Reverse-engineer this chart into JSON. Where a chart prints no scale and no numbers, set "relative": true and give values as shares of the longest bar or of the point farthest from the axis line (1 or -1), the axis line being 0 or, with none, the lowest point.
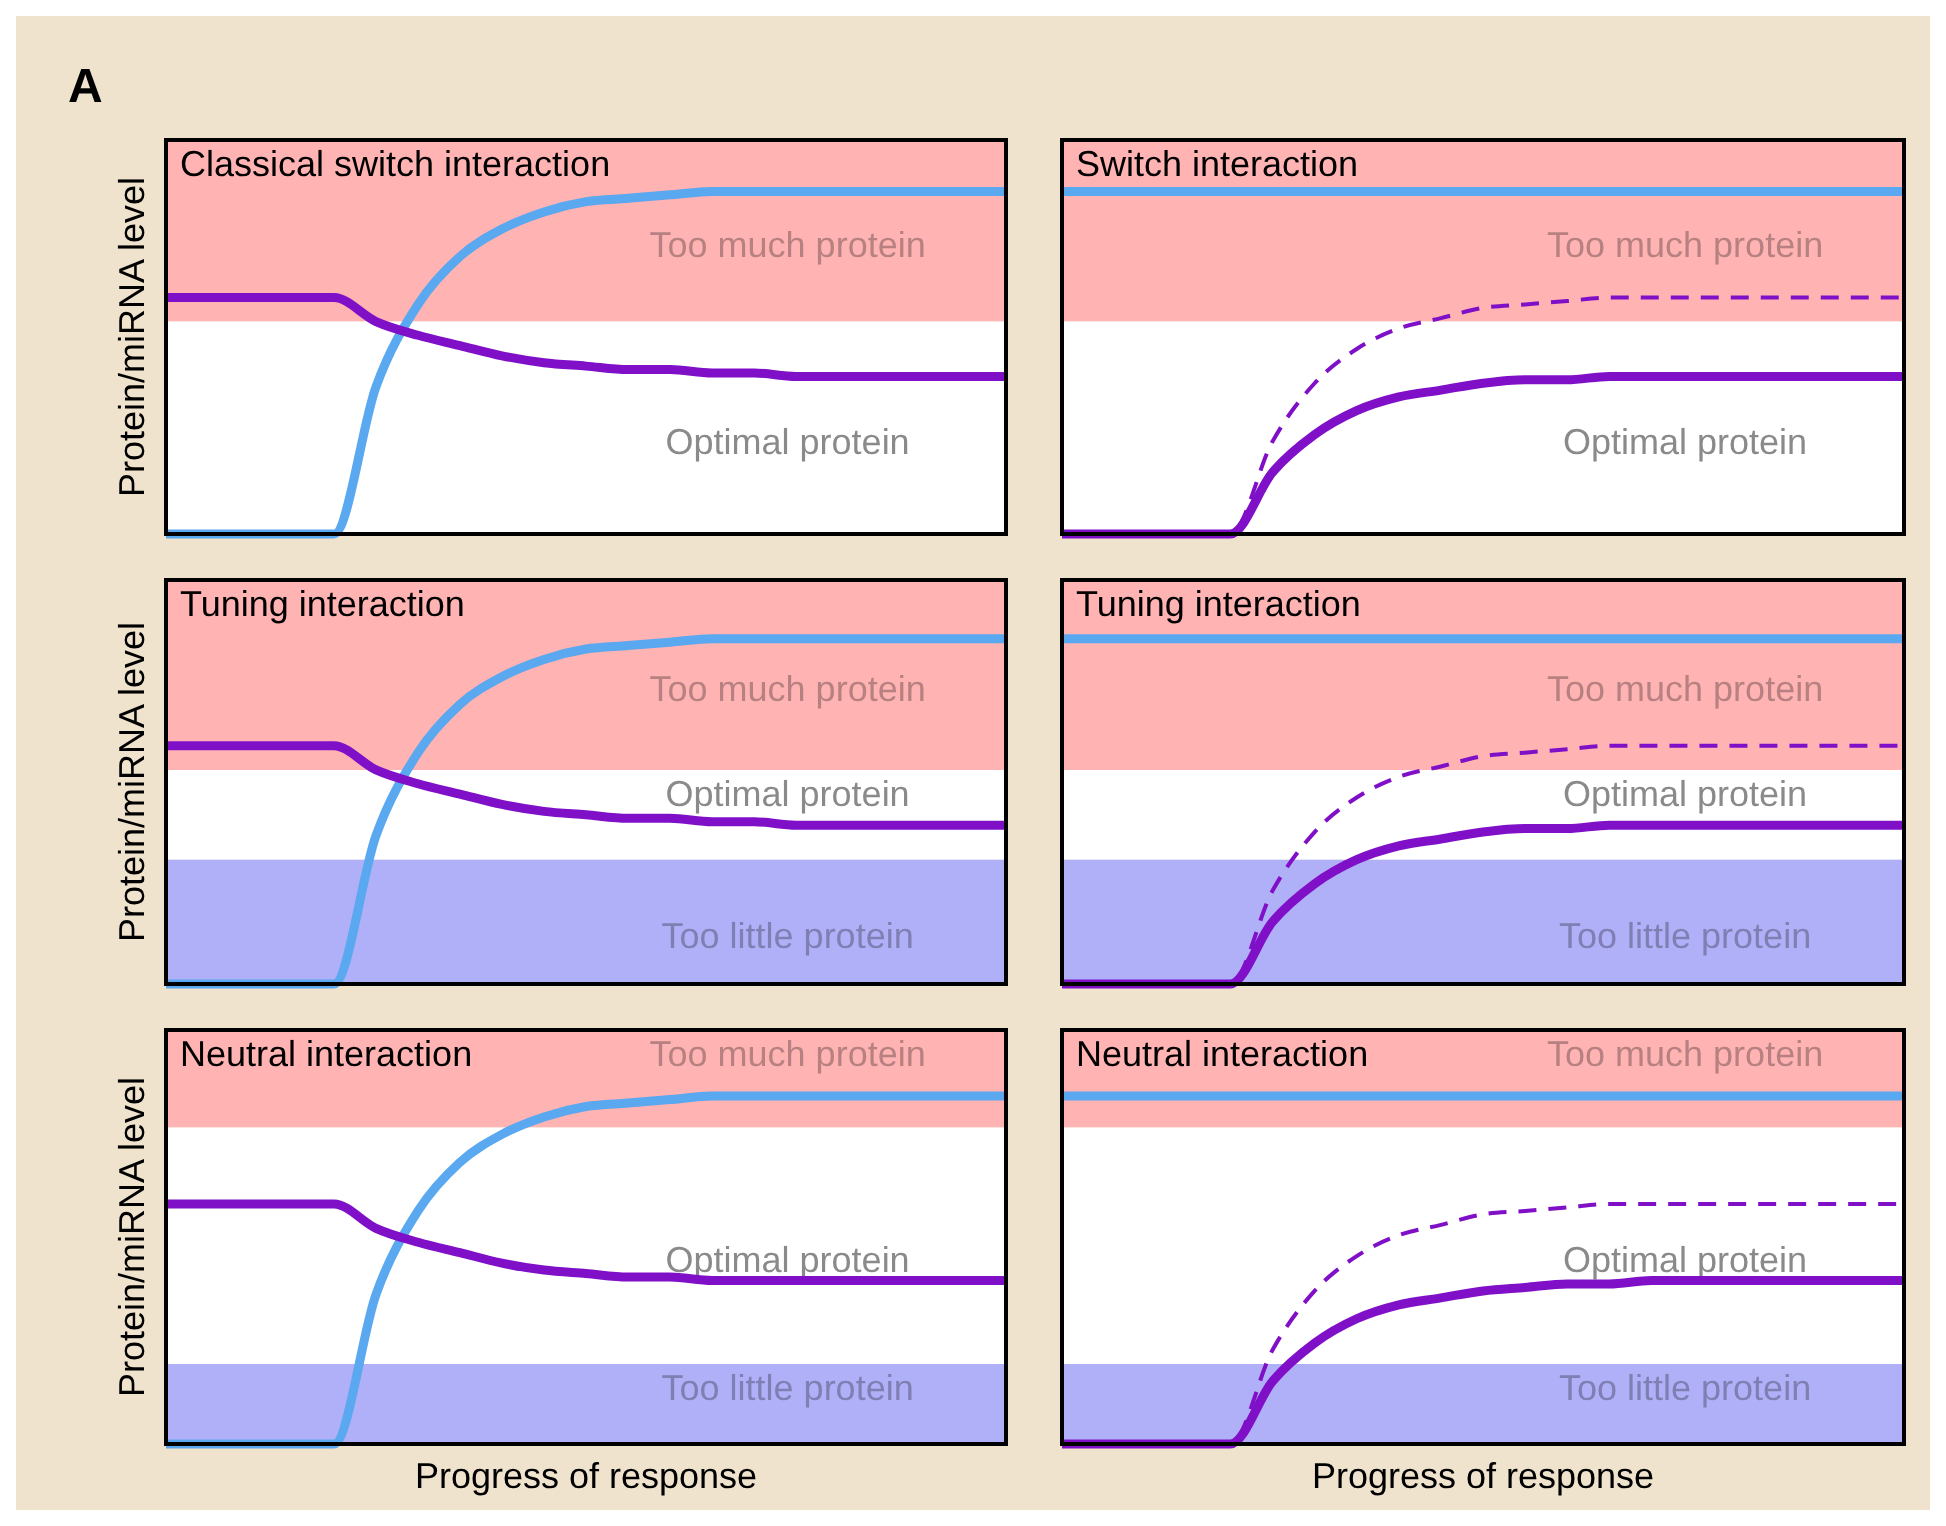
{
  "chart_data": [
    {
      "type": "line",
      "relative": true,
      "title": "Classical switch interaction",
      "ylabel": "Protein/miRNA level",
      "annotations": [
        "A"
      ],
      "categories": [
        null,
        null,
        null,
        null,
        null,
        null,
        null,
        null,
        null,
        null,
        null,
        null,
        null,
        null,
        null,
        null,
        null,
        null,
        null,
        null,
        null
      ],
      "series": [
        {
          "color": "#5aa8f0",
          "values": [
            0,
            0,
            0,
            0,
            0,
            0.43,
            0.67,
            0.81,
            0.89,
            0.94,
            0.97,
            0.98,
            0.99,
            1,
            1,
            1,
            1,
            1,
            1,
            1,
            1
          ]
        },
        {
          "color": "#8010c8",
          "values": [
            0.69,
            0.69,
            0.69,
            0.69,
            0.69,
            0.62,
            0.58,
            0.55,
            0.52,
            0.5,
            0.49,
            0.48,
            0.48,
            0.47,
            0.47,
            0.46,
            0.46,
            0.46,
            0.46,
            0.46,
            0.46
          ]
        }
      ],
      "bands": [
        {
          "axis": "y",
          "from": 0.62,
          "to": 1.15,
          "label": "Too much protein",
          "color": "#ffb3b3"
        },
        {
          "axis": "y",
          "from": 0,
          "to": 0.62,
          "label": "Optimal protein",
          "color": "#ffffff"
        }
      ]
    },
    {
      "type": "line",
      "relative": true,
      "title": "Switch interaction",
      "categories": [
        null,
        null,
        null,
        null,
        null,
        null,
        null,
        null,
        null,
        null,
        null,
        null,
        null,
        null,
        null,
        null,
        null,
        null,
        null,
        null,
        null
      ],
      "series": [
        {
          "color": "#5aa8f0",
          "values": [
            1,
            1,
            1,
            1,
            1,
            1,
            1,
            1,
            1,
            1,
            1,
            1,
            1,
            1,
            1,
            1,
            1,
            1,
            1,
            1,
            1
          ]
        },
        {
          "color": "#8010c8",
          "line_style": "dashed",
          "values": [
            0,
            0,
            0,
            0,
            0,
            0.27,
            0.44,
            0.54,
            0.6,
            0.63,
            0.66,
            0.67,
            0.68,
            0.69,
            0.69,
            0.69,
            0.69,
            0.69,
            0.69,
            0.69,
            0.69
          ]
        },
        {
          "color": "#8010c8",
          "values": [
            0,
            0,
            0,
            0,
            0,
            0.18,
            0.29,
            0.36,
            0.4,
            0.42,
            0.44,
            0.45,
            0.45,
            0.46,
            0.46,
            0.46,
            0.46,
            0.46,
            0.46,
            0.46,
            0.46
          ]
        }
      ],
      "bands": [
        {
          "axis": "y",
          "from": 0.62,
          "to": 1.15,
          "label": "Too much protein",
          "color": "#ffb3b3"
        },
        {
          "axis": "y",
          "from": 0,
          "to": 0.62,
          "label": "Optimal protein",
          "color": "#ffffff"
        }
      ]
    },
    {
      "type": "line",
      "relative": true,
      "title": "Tuning interaction",
      "ylabel": "Protein/miRNA level",
      "categories": [
        null,
        null,
        null,
        null,
        null,
        null,
        null,
        null,
        null,
        null,
        null,
        null,
        null,
        null,
        null,
        null,
        null,
        null,
        null,
        null,
        null
      ],
      "series": [
        {
          "color": "#5aa8f0",
          "values": [
            0,
            0,
            0,
            0,
            0,
            0.43,
            0.67,
            0.81,
            0.89,
            0.94,
            0.97,
            0.98,
            0.99,
            1,
            1,
            1,
            1,
            1,
            1,
            1,
            1
          ]
        },
        {
          "color": "#8010c8",
          "values": [
            0.69,
            0.69,
            0.69,
            0.69,
            0.69,
            0.62,
            0.58,
            0.55,
            0.52,
            0.5,
            0.49,
            0.48,
            0.48,
            0.47,
            0.47,
            0.46,
            0.46,
            0.46,
            0.46,
            0.46,
            0.46
          ]
        }
      ],
      "bands": [
        {
          "axis": "y",
          "from": 0.62,
          "to": 1.17,
          "label": "Too much protein",
          "color": "#ffb3b3"
        },
        {
          "axis": "y",
          "from": 0.36,
          "to": 0.62,
          "label": "Optimal protein",
          "color": "#ffffff"
        },
        {
          "axis": "y",
          "from": 0,
          "to": 0.36,
          "label": "Too little protein",
          "color": "#b0b0f8"
        }
      ]
    },
    {
      "type": "line",
      "relative": true,
      "title": "Tuning interaction",
      "categories": [
        null,
        null,
        null,
        null,
        null,
        null,
        null,
        null,
        null,
        null,
        null,
        null,
        null,
        null,
        null,
        null,
        null,
        null,
        null,
        null,
        null
      ],
      "series": [
        {
          "color": "#5aa8f0",
          "values": [
            1,
            1,
            1,
            1,
            1,
            1,
            1,
            1,
            1,
            1,
            1,
            1,
            1,
            1,
            1,
            1,
            1,
            1,
            1,
            1,
            1
          ]
        },
        {
          "color": "#8010c8",
          "line_style": "dashed",
          "values": [
            0,
            0,
            0,
            0,
            0,
            0.27,
            0.44,
            0.54,
            0.6,
            0.63,
            0.66,
            0.67,
            0.68,
            0.69,
            0.69,
            0.69,
            0.69,
            0.69,
            0.69,
            0.69,
            0.69
          ]
        },
        {
          "color": "#8010c8",
          "values": [
            0,
            0,
            0,
            0,
            0,
            0.18,
            0.29,
            0.36,
            0.4,
            0.42,
            0.44,
            0.45,
            0.45,
            0.46,
            0.46,
            0.46,
            0.46,
            0.46,
            0.46,
            0.46,
            0.46
          ]
        }
      ],
      "bands": [
        {
          "axis": "y",
          "from": 0.62,
          "to": 1.17,
          "label": "Too much protein",
          "color": "#ffb3b3"
        },
        {
          "axis": "y",
          "from": 0.36,
          "to": 0.62,
          "label": "Optimal protein",
          "color": "#ffffff"
        },
        {
          "axis": "y",
          "from": 0,
          "to": 0.36,
          "label": "Too little protein",
          "color": "#b0b0f8"
        }
      ]
    },
    {
      "type": "line",
      "relative": true,
      "title": "Neutral interaction",
      "ylabel": "Protein/miRNA level",
      "xlabel": "Progress of response",
      "categories": [
        null,
        null,
        null,
        null,
        null,
        null,
        null,
        null,
        null,
        null,
        null,
        null,
        null,
        null,
        null,
        null,
        null,
        null,
        null,
        null,
        null
      ],
      "series": [
        {
          "color": "#5aa8f0",
          "values": [
            0,
            0,
            0,
            0,
            0,
            0.43,
            0.67,
            0.81,
            0.89,
            0.94,
            0.97,
            0.98,
            0.99,
            1,
            1,
            1,
            1,
            1,
            1,
            1,
            1
          ]
        },
        {
          "color": "#8010c8",
          "values": [
            0.69,
            0.69,
            0.69,
            0.69,
            0.69,
            0.62,
            0.58,
            0.55,
            0.52,
            0.5,
            0.49,
            0.48,
            0.48,
            0.47,
            0.47,
            0.47,
            0.47,
            0.47,
            0.47,
            0.47,
            0.47
          ]
        }
      ],
      "bands": [
        {
          "axis": "y",
          "from": 0.91,
          "to": 1.19,
          "label": "Too much protein",
          "color": "#ffb3b3"
        },
        {
          "axis": "y",
          "from": 0.23,
          "to": 0.91,
          "label": "Optimal protein",
          "color": "#ffffff"
        },
        {
          "axis": "y",
          "from": 0,
          "to": 0.23,
          "label": "Too little protein",
          "color": "#b0b0f8"
        }
      ]
    },
    {
      "type": "line",
      "relative": true,
      "title": "Neutral interaction",
      "xlabel": "Progress of response",
      "categories": [
        null,
        null,
        null,
        null,
        null,
        null,
        null,
        null,
        null,
        null,
        null,
        null,
        null,
        null,
        null,
        null,
        null,
        null,
        null,
        null,
        null
      ],
      "series": [
        {
          "color": "#5aa8f0",
          "values": [
            1,
            1,
            1,
            1,
            1,
            1,
            1,
            1,
            1,
            1,
            1,
            1,
            1,
            1,
            1,
            1,
            1,
            1,
            1,
            1,
            1
          ]
        },
        {
          "color": "#8010c8",
          "line_style": "dashed",
          "values": [
            0,
            0,
            0,
            0,
            0,
            0.27,
            0.44,
            0.54,
            0.6,
            0.63,
            0.66,
            0.67,
            0.68,
            0.69,
            0.69,
            0.69,
            0.69,
            0.69,
            0.69,
            0.69,
            0.69
          ]
        },
        {
          "color": "#8010c8",
          "values": [
            0,
            0,
            0,
            0,
            0,
            0.18,
            0.29,
            0.36,
            0.4,
            0.42,
            0.44,
            0.45,
            0.46,
            0.46,
            0.47,
            0.47,
            0.47,
            0.47,
            0.47,
            0.47,
            0.47
          ]
        }
      ],
      "bands": [
        {
          "axis": "y",
          "from": 0.91,
          "to": 1.19,
          "label": "Too much protein",
          "color": "#ffb3b3"
        },
        {
          "axis": "y",
          "from": 0.23,
          "to": 0.91,
          "label": "Optimal protein",
          "color": "#ffffff"
        },
        {
          "axis": "y",
          "from": 0,
          "to": 0.23,
          "label": "Too little protein",
          "color": "#b0b0f8"
        }
      ]
    }
  ]
}
